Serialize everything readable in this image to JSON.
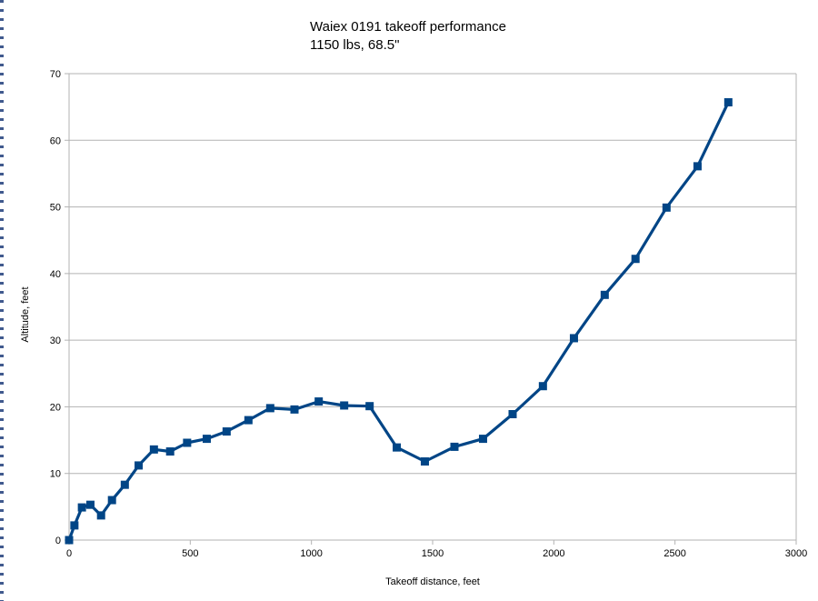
{
  "chart_data": {
    "type": "line",
    "title": "Waiex 0191 takeoff performance",
    "subtitle": "1150 lbs, 68.5\"",
    "xlabel": "Takeoff distance, feet",
    "ylabel": "Altitude, feet",
    "xlim": [
      0,
      3000
    ],
    "ylim": [
      0,
      70
    ],
    "x_ticks": [
      "0",
      "500",
      "1000",
      "1500",
      "2000",
      "2500",
      "3000"
    ],
    "y_ticks": [
      "0",
      "10",
      "20",
      "30",
      "40",
      "50",
      "60",
      "70"
    ],
    "grid": "horizontal",
    "legend": "none",
    "series": [
      {
        "color": "#004586",
        "marker": "square",
        "x": [
          0,
          22,
          53,
          88,
          132,
          177,
          230,
          287,
          350,
          417,
          487,
          568,
          650,
          740,
          830,
          930,
          1030,
          1135,
          1240,
          1352,
          1468,
          1590,
          1708,
          1830,
          1955,
          2083,
          2210,
          2337,
          2465,
          2593,
          2720
        ],
        "y": [
          0,
          2.2,
          4.9,
          5.3,
          3.7,
          6.0,
          8.3,
          11.2,
          13.6,
          13.3,
          14.6,
          15.2,
          16.3,
          18.0,
          19.8,
          19.6,
          20.8,
          20.2,
          20.1,
          13.9,
          11.8,
          14.0,
          15.2,
          18.9,
          23.1,
          30.3,
          36.8,
          42.2,
          49.9,
          56.1,
          65.7
        ]
      }
    ]
  }
}
